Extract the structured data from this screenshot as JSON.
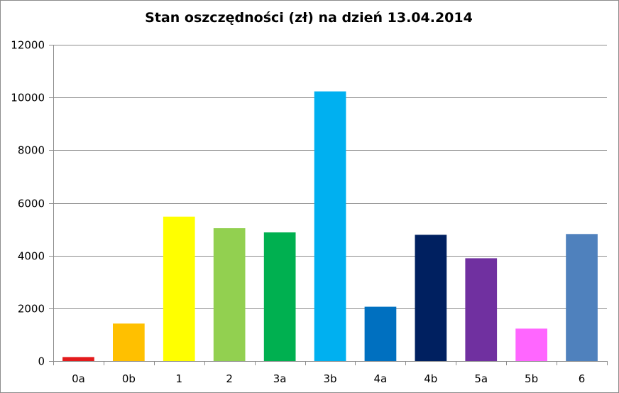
{
  "chart_data": {
    "type": "bar",
    "title": "Stan oszczędności (zł) na dzień 13.04.2014",
    "xlabel": "",
    "ylabel": "",
    "categories": [
      "0a",
      "0b",
      "1",
      "2",
      "3a",
      "3b",
      "4a",
      "4b",
      "5a",
      "5b",
      "6"
    ],
    "values": [
      150,
      1420,
      5480,
      5040,
      4880,
      10230,
      2060,
      4790,
      3900,
      1230,
      4820
    ],
    "colors": [
      "#e31a1c",
      "#ffc000",
      "#ffff00",
      "#92d050",
      "#00b050",
      "#00b0f0",
      "#0070c0",
      "#002060",
      "#7030a0",
      "#ff66ff",
      "#4f81bd"
    ],
    "ylim": [
      0,
      12000
    ],
    "yticks": [
      0,
      2000,
      4000,
      6000,
      8000,
      10000,
      12000
    ],
    "grid": true,
    "legend": "none"
  }
}
